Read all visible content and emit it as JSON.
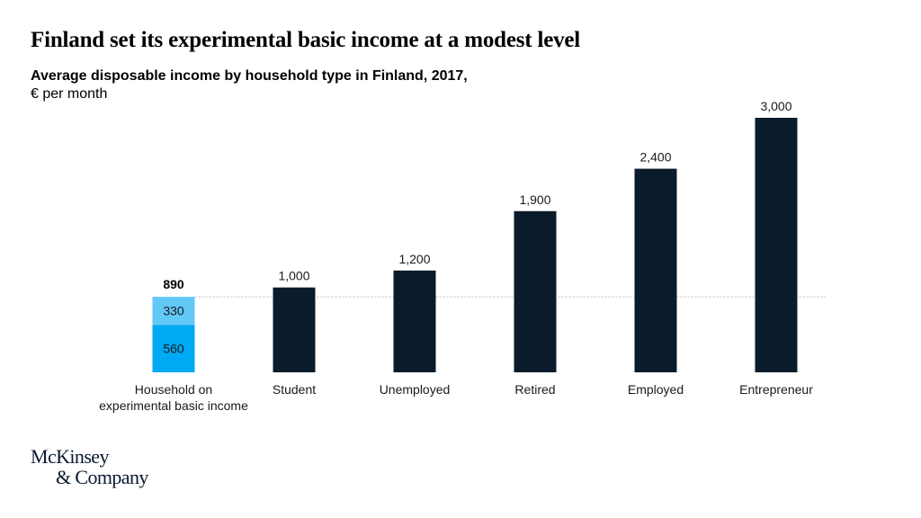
{
  "title": "Finland set its experimental basic income at a modest level",
  "subtitle": "Average disposable income by household type in Finland, 2017,",
  "unit": "€ per month",
  "logo": {
    "line1": "McKinsey",
    "line2": "& Company"
  },
  "colors": {
    "bar": "#0a1b2b",
    "stack_bottom": "#00a9f4",
    "stack_top": "#62c9f7",
    "reference_line": "#bdbdbd"
  },
  "chart_data": {
    "type": "bar",
    "categories": [
      [
        "Household on",
        "experimental basic income"
      ],
      [
        "Student"
      ],
      [
        "Unemployed"
      ],
      [
        "Retired"
      ],
      [
        "Employed"
      ],
      [
        "Entrepreneur"
      ]
    ],
    "values": [
      890,
      1000,
      1200,
      1900,
      2400,
      3000
    ],
    "value_labels": [
      "890",
      "1,000",
      "1,200",
      "1,900",
      "2,400",
      "3,000"
    ],
    "stacked_first_bar": {
      "segments": [
        {
          "value": 560,
          "label": "560"
        },
        {
          "value": 330,
          "label": "330"
        }
      ],
      "total_label": "890"
    },
    "reference_line_value": 890,
    "ylim": [
      0,
      3000
    ],
    "grid": false,
    "axes_visible": false
  }
}
